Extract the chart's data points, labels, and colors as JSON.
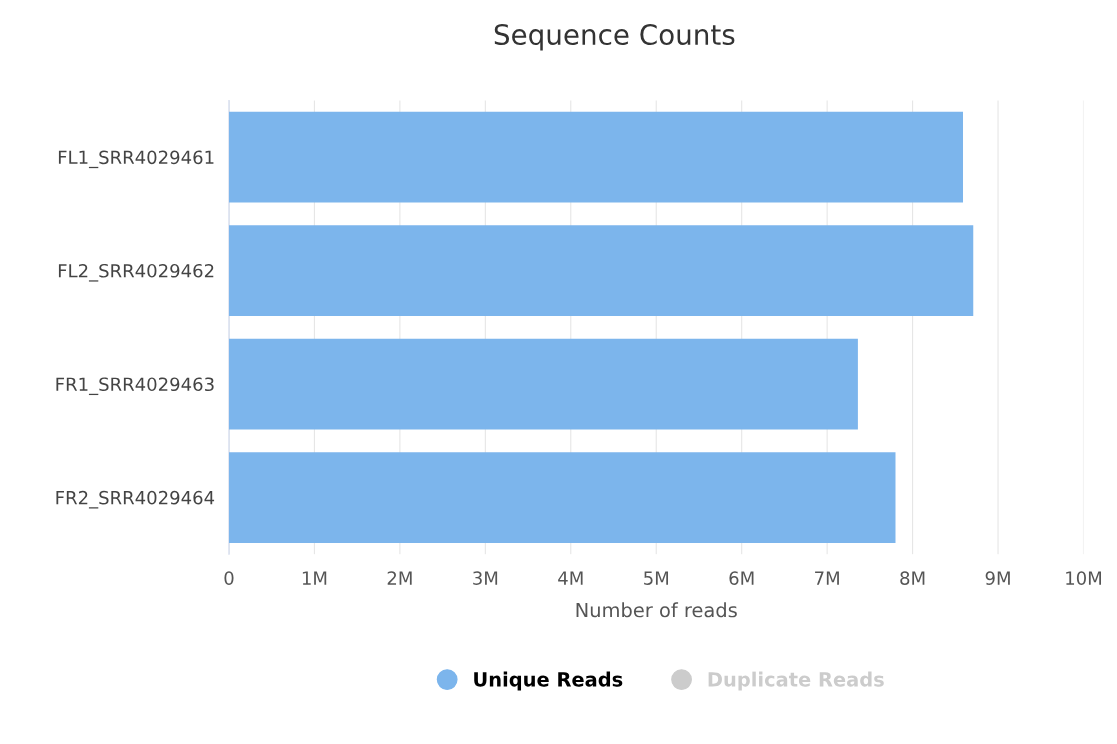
{
  "chart_data": {
    "type": "bar",
    "orientation": "horizontal",
    "title": "Sequence Counts",
    "xlabel": "Number of reads",
    "categories": [
      "FL1_SRR4029461",
      "FL2_SRR4029462",
      "FR1_SRR4029463",
      "FR2_SRR4029464"
    ],
    "series": [
      {
        "name": "Unique Reads",
        "color": "#7cb5ec",
        "values": [
          8590000,
          8710000,
          7360000,
          7800000
        ]
      },
      {
        "name": "Duplicate Reads",
        "color": "#cccccc",
        "values": [
          null,
          null,
          null,
          null
        ]
      }
    ],
    "xlim": [
      0,
      10000000
    ],
    "xticks": [
      0,
      {
        "value": 1000000,
        "label": "1M"
      },
      {
        "value": 2000000,
        "label": "2M"
      },
      {
        "value": 3000000,
        "label": "3M"
      },
      {
        "value": 4000000,
        "label": "4M"
      },
      {
        "value": 5000000,
        "label": "5M"
      },
      {
        "value": 6000000,
        "label": "6M"
      },
      {
        "value": 7000000,
        "label": "7M"
      },
      {
        "value": 8000000,
        "label": "8M"
      },
      {
        "value": 9000000,
        "label": "9M"
      },
      {
        "value": 10000000,
        "label": "10M"
      }
    ],
    "grid": "x",
    "legend": "bottom"
  }
}
